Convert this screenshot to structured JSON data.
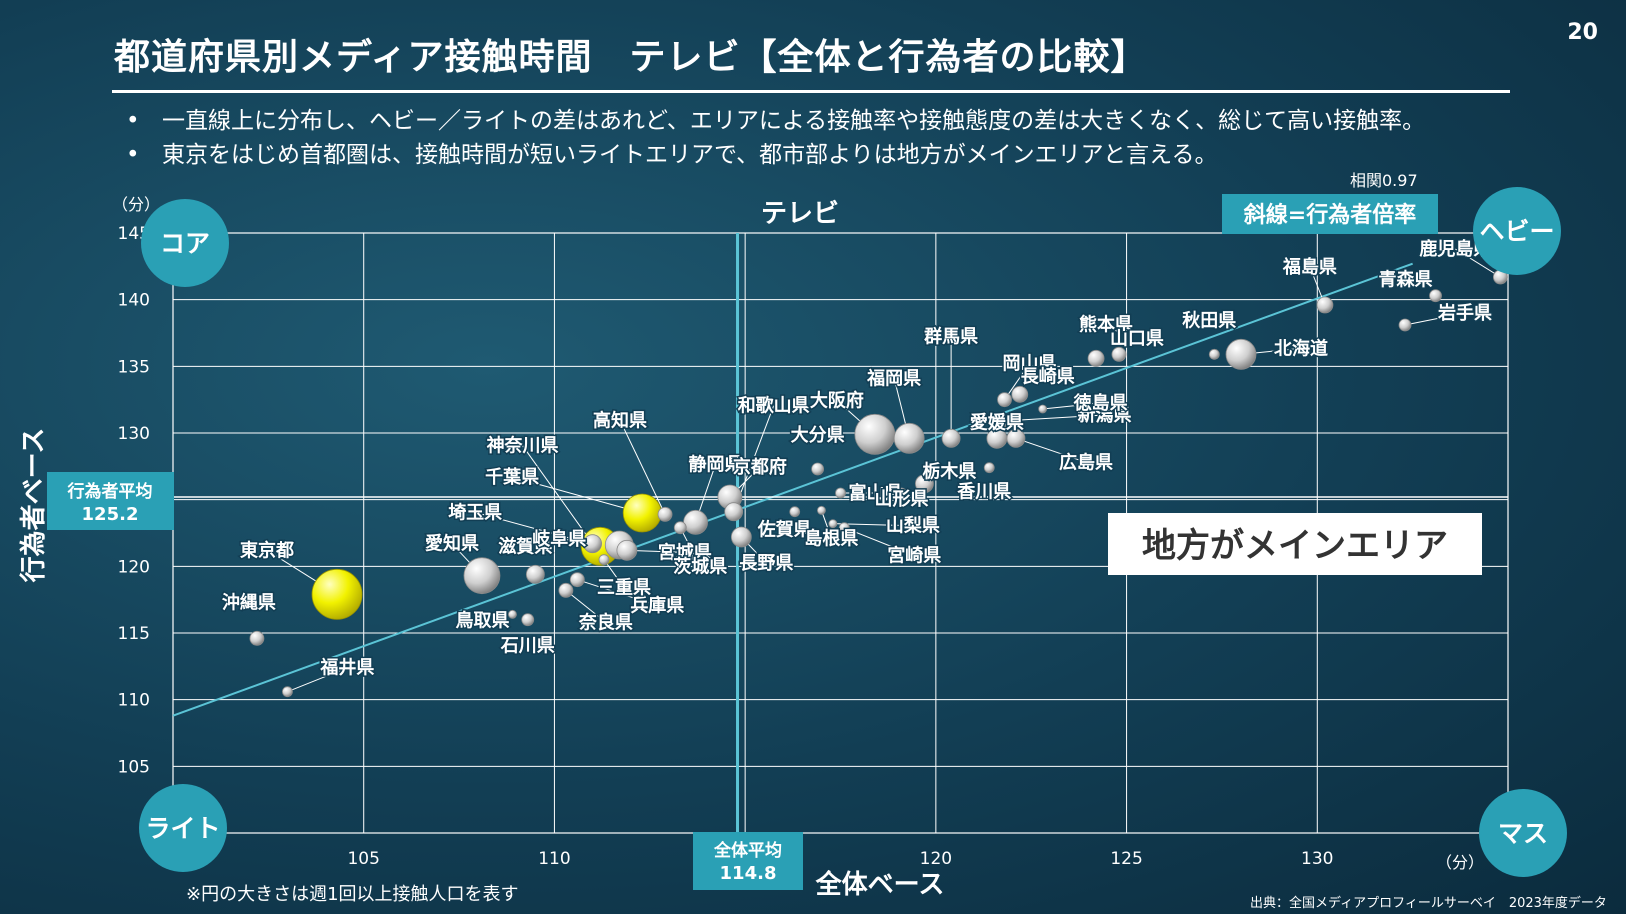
{
  "page_number": "20",
  "title": "都道府県別メディア接触時間　テレビ【全体と行為者の比較】",
  "bullets": [
    "一直線上に分布し、ヘビー／ライトの差はあれど、エリアによる接触率や接触態度の差は大きくなく、総じて高い接触率。",
    "東京をはじめ首都圏は、接触時間が短いライトエリアで、都市部よりは地方がメインエリアと言える。"
  ],
  "footnote": "※円の大きさは週1回以上接触人口を表す",
  "source": "出典：全国メディアプロフィールサーベイ　2023年度データ",
  "colors": {
    "background": "#123e54",
    "accent": "#2aa0b5",
    "highlight": "#f2f200",
    "line": "#5bc4d6"
  },
  "chart_data": {
    "type": "scatter",
    "title": "テレビ",
    "xlabel": "全体ベース",
    "ylabel": "行為者ベース",
    "x_unit": "（分）",
    "y_unit": "（分）",
    "xlim": [
      100,
      135
    ],
    "ylim": [
      100,
      145
    ],
    "x_ticks": [
      105,
      110,
      120,
      125,
      130
    ],
    "y_ticks": [
      105,
      110,
      115,
      120,
      130,
      135,
      140,
      145
    ],
    "grid": true,
    "correlation_label": "相関0.97",
    "line_label": "斜線=行為者倍率",
    "trend_line": [
      [
        100,
        108.8
      ],
      [
        132.5,
        142.7
      ]
    ],
    "x_average": {
      "label": "全体平均",
      "value": "114.8",
      "x": 114.8
    },
    "y_average": {
      "label": "行為者平均",
      "value": "125.2",
      "y": 125.2
    },
    "quadrants": {
      "top_left": "コア",
      "top_right": "ヘビー",
      "bottom_left": "ライト",
      "bottom_right": "マス"
    },
    "callout": "地方がメインエリア",
    "points": [
      {
        "name": "東京都",
        "x": 104.3,
        "y": 117.9,
        "size": 25,
        "highlight": true
      },
      {
        "name": "沖縄県",
        "x": 102.2,
        "y": 114.6,
        "size": 7
      },
      {
        "name": "福井県",
        "x": 103.0,
        "y": 110.6,
        "size": 5
      },
      {
        "name": "愛知県",
        "x": 108.1,
        "y": 119.3,
        "size": 18
      },
      {
        "name": "滋賀県",
        "x": 109.5,
        "y": 119.4,
        "size": 9
      },
      {
        "name": "鳥取県",
        "x": 108.9,
        "y": 116.4,
        "size": 4
      },
      {
        "name": "石川県",
        "x": 109.3,
        "y": 116.0,
        "size": 6
      },
      {
        "name": "奈良県",
        "x": 110.3,
        "y": 118.2,
        "size": 7
      },
      {
        "name": "兵庫県",
        "x": 110.6,
        "y": 119.0,
        "size": 7
      },
      {
        "name": "埼玉県",
        "x": 111.2,
        "y": 121.5,
        "size": 19,
        "highlight": true
      },
      {
        "name": "千葉県",
        "x": 112.3,
        "y": 124.0,
        "size": 19,
        "highlight": true
      },
      {
        "name": "神奈川県",
        "x": 111.0,
        "y": 121.7,
        "size": 9
      },
      {
        "name": "岐阜県",
        "x": 111.7,
        "y": 121.6,
        "size": 14
      },
      {
        "name": "宮城県",
        "x": 111.9,
        "y": 121.2,
        "size": 10
      },
      {
        "name": "三重県",
        "x": 111.3,
        "y": 120.5,
        "size": 5
      },
      {
        "name": "高知県",
        "x": 112.9,
        "y": 123.9,
        "size": 7
      },
      {
        "name": "静岡県",
        "x": 113.7,
        "y": 123.3,
        "size": 12
      },
      {
        "name": "茨城県",
        "x": 113.3,
        "y": 122.9,
        "size": 6
      },
      {
        "name": "京都府",
        "x": 114.6,
        "y": 125.2,
        "size": 12
      },
      {
        "name": "和歌山県",
        "x": 114.7,
        "y": 124.1,
        "size": 9
      },
      {
        "name": "長野県",
        "x": 114.9,
        "y": 122.2,
        "size": 10
      },
      {
        "name": "佐賀県",
        "x": 116.3,
        "y": 124.1,
        "size": 5
      },
      {
        "name": "大阪府",
        "x": 118.4,
        "y": 129.9,
        "size": 20
      },
      {
        "name": "大分県",
        "x": 116.9,
        "y": 127.3,
        "size": 6
      },
      {
        "name": "島根県",
        "x": 117.0,
        "y": 124.2,
        "size": 4
      },
      {
        "name": "富山県",
        "x": 117.5,
        "y": 125.5,
        "size": 5
      },
      {
        "name": "宮崎県",
        "x": 117.6,
        "y": 122.9,
        "size": 5
      },
      {
        "name": "山梨県",
        "x": 117.3,
        "y": 123.2,
        "size": 4
      },
      {
        "name": "福岡県",
        "x": 119.3,
        "y": 129.6,
        "size": 15
      },
      {
        "name": "山形県",
        "x": 119.1,
        "y": 125.5,
        "size": 5
      },
      {
        "name": "栃木県",
        "x": 119.7,
        "y": 126.2,
        "size": 9
      },
      {
        "name": "群馬県",
        "x": 120.4,
        "y": 129.6,
        "size": 9
      },
      {
        "name": "愛媛県",
        "x": 121.6,
        "y": 129.6,
        "size": 10
      },
      {
        "name": "香川県",
        "x": 121.4,
        "y": 127.4,
        "size": 5
      },
      {
        "name": "広島県",
        "x": 122.1,
        "y": 129.6,
        "size": 9
      },
      {
        "name": "岡山県",
        "x": 121.8,
        "y": 132.5,
        "size": 7
      },
      {
        "name": "長崎県",
        "x": 122.2,
        "y": 132.9,
        "size": 8
      },
      {
        "name": "新潟県",
        "x": 121.8,
        "y": 130.9,
        "size": 6
      },
      {
        "name": "徳島県",
        "x": 122.8,
        "y": 131.8,
        "size": 4
      },
      {
        "name": "熊本県",
        "x": 124.2,
        "y": 135.6,
        "size": 8
      },
      {
        "name": "山口県",
        "x": 124.8,
        "y": 135.9,
        "size": 7
      },
      {
        "name": "秋田県",
        "x": 127.3,
        "y": 135.9,
        "size": 5
      },
      {
        "name": "北海道",
        "x": 128.0,
        "y": 135.9,
        "size": 15
      },
      {
        "name": "福島県",
        "x": 130.2,
        "y": 139.6,
        "size": 8
      },
      {
        "name": "青森県",
        "x": 133.1,
        "y": 140.3,
        "size": 6
      },
      {
        "name": "岩手県",
        "x": 132.3,
        "y": 138.1,
        "size": 6
      },
      {
        "name": "鹿児島県",
        "x": 134.8,
        "y": 141.7,
        "size": 7
      }
    ]
  }
}
